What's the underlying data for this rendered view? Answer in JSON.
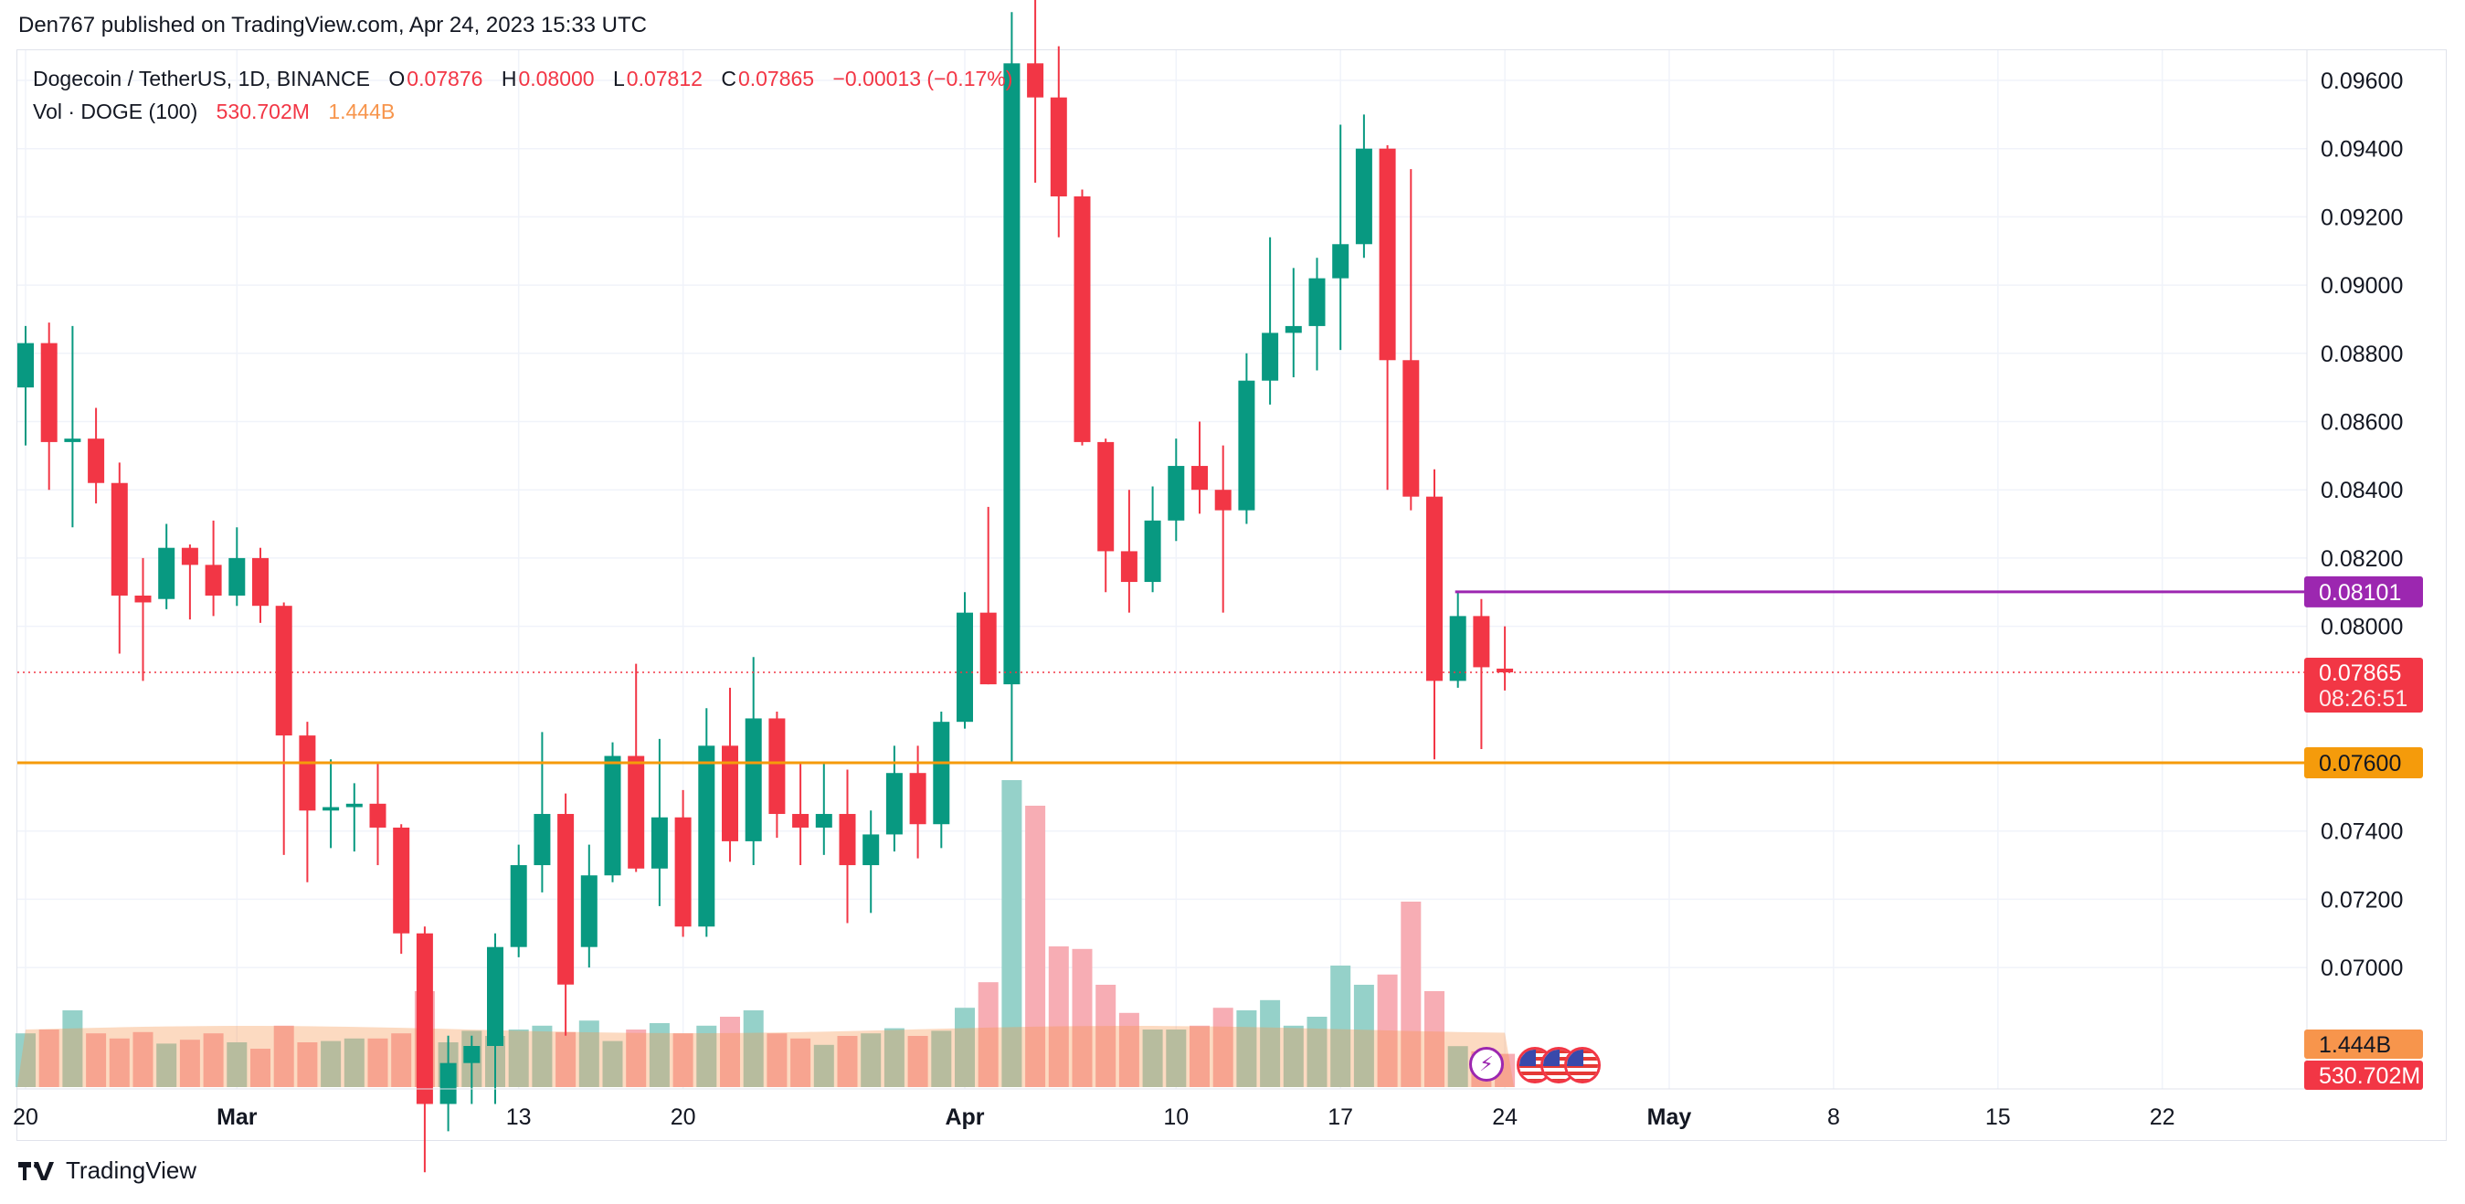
{
  "header": {
    "publisher": "Den767 published on TradingView.com, Apr 24, 2023 15:33 UTC"
  },
  "legend": {
    "symbol": "Dogecoin / TetherUS, 1D, BINANCE",
    "o_label": "O",
    "o_value": "0.07876",
    "h_label": "H",
    "h_value": "0.08000",
    "l_label": "L",
    "l_value": "0.07812",
    "c_label": "C",
    "c_value": "0.07865",
    "change": "−0.00013 (−0.17%)",
    "vol_label": "Vol · DOGE (100)",
    "vol_value": "530.702M",
    "vol_ma": "1.444B"
  },
  "footer": {
    "brand": "TradingView"
  },
  "colors": {
    "up": "#089981",
    "down": "#f23645",
    "level_orange": "#f59b0b",
    "level_purple": "#9c27b0",
    "vol_up": "#8fcfc6",
    "vol_down": "#f7a9b0",
    "vol_ma": "#f7954c"
  },
  "chart_data": {
    "type": "candlestick",
    "title": "Dogecoin / TetherUS, 1D, BINANCE",
    "y_axis": {
      "ticks": [
        "0.09600",
        "0.09400",
        "0.09200",
        "0.09000",
        "0.08800",
        "0.08600",
        "0.08400",
        "0.08200",
        "0.08000",
        "0.07400",
        "0.07200",
        "0.07000"
      ],
      "range": [
        0.0673,
        0.097
      ]
    },
    "x_axis": {
      "ticks": [
        "20",
        "Mar",
        "13",
        "20",
        "Apr",
        "10",
        "17",
        "24",
        "May",
        "8",
        "15",
        "22"
      ],
      "tick_dates": [
        "2023-02-20",
        "2023-03-01",
        "2023-03-13",
        "2023-03-20",
        "2023-04-01",
        "2023-04-10",
        "2023-04-17",
        "2023-04-24",
        "2023-05-01",
        "2023-05-08",
        "2023-05-15",
        "2023-05-22"
      ]
    },
    "grid": true,
    "price_labels": {
      "purple": "0.08101",
      "last": "0.07865",
      "countdown": "08:26:51",
      "orange": "0.07600",
      "vol_ma": "1.444B",
      "vol": "530.702M"
    },
    "horizontal_levels": [
      {
        "value": 0.076,
        "color": "orange"
      },
      {
        "value": 0.08101,
        "color": "purple",
        "from": "2023-04-21"
      }
    ],
    "last_price": 0.07865,
    "candles": [
      {
        "d": "2023-02-20",
        "o": 0.087,
        "h": 0.0888,
        "l": 0.0853,
        "c": 0.0883
      },
      {
        "d": "2023-02-21",
        "o": 0.0883,
        "h": 0.0889,
        "l": 0.084,
        "c": 0.0854
      },
      {
        "d": "2023-02-22",
        "o": 0.0854,
        "h": 0.0888,
        "l": 0.0829,
        "c": 0.0855
      },
      {
        "d": "2023-02-23",
        "o": 0.0855,
        "h": 0.0864,
        "l": 0.0836,
        "c": 0.0842
      },
      {
        "d": "2023-02-24",
        "o": 0.0842,
        "h": 0.0848,
        "l": 0.0792,
        "c": 0.0809
      },
      {
        "d": "2023-02-25",
        "o": 0.0809,
        "h": 0.082,
        "l": 0.0784,
        "c": 0.0807
      },
      {
        "d": "2023-02-26",
        "o": 0.0808,
        "h": 0.083,
        "l": 0.0805,
        "c": 0.0823
      },
      {
        "d": "2023-02-27",
        "o": 0.0823,
        "h": 0.0824,
        "l": 0.0802,
        "c": 0.0818
      },
      {
        "d": "2023-02-28",
        "o": 0.0818,
        "h": 0.0831,
        "l": 0.0803,
        "c": 0.0809
      },
      {
        "d": "2023-03-01",
        "o": 0.0809,
        "h": 0.0829,
        "l": 0.0806,
        "c": 0.082
      },
      {
        "d": "2023-03-02",
        "o": 0.082,
        "h": 0.0823,
        "l": 0.0801,
        "c": 0.0806
      },
      {
        "d": "2023-03-03",
        "o": 0.0806,
        "h": 0.0807,
        "l": 0.0733,
        "c": 0.0768
      },
      {
        "d": "2023-03-04",
        "o": 0.0768,
        "h": 0.0772,
        "l": 0.0725,
        "c": 0.0746
      },
      {
        "d": "2023-03-05",
        "o": 0.0746,
        "h": 0.0761,
        "l": 0.0735,
        "c": 0.0747
      },
      {
        "d": "2023-03-06",
        "o": 0.0747,
        "h": 0.0754,
        "l": 0.0734,
        "c": 0.0748
      },
      {
        "d": "2023-03-07",
        "o": 0.0748,
        "h": 0.076,
        "l": 0.073,
        "c": 0.0741
      },
      {
        "d": "2023-03-08",
        "o": 0.0741,
        "h": 0.0742,
        "l": 0.0704,
        "c": 0.071
      },
      {
        "d": "2023-03-09",
        "o": 0.071,
        "h": 0.0712,
        "l": 0.064,
        "c": 0.066
      },
      {
        "d": "2023-03-10",
        "o": 0.066,
        "h": 0.068,
        "l": 0.0652,
        "c": 0.0672
      },
      {
        "d": "2023-03-11",
        "o": 0.0672,
        "h": 0.068,
        "l": 0.066,
        "c": 0.0677
      },
      {
        "d": "2023-03-12",
        "o": 0.0677,
        "h": 0.071,
        "l": 0.066,
        "c": 0.0706
      },
      {
        "d": "2023-03-13",
        "o": 0.0706,
        "h": 0.0736,
        "l": 0.0703,
        "c": 0.073
      },
      {
        "d": "2023-03-14",
        "o": 0.073,
        "h": 0.0769,
        "l": 0.0722,
        "c": 0.0745
      },
      {
        "d": "2023-03-15",
        "o": 0.0745,
        "h": 0.0751,
        "l": 0.068,
        "c": 0.0695
      },
      {
        "d": "2023-03-16",
        "o": 0.0706,
        "h": 0.0736,
        "l": 0.07,
        "c": 0.0727
      },
      {
        "d": "2023-03-17",
        "o": 0.0727,
        "h": 0.0766,
        "l": 0.0725,
        "c": 0.0762
      },
      {
        "d": "2023-03-18",
        "o": 0.0762,
        "h": 0.0789,
        "l": 0.0728,
        "c": 0.0729
      },
      {
        "d": "2023-03-19",
        "o": 0.0729,
        "h": 0.0767,
        "l": 0.0718,
        "c": 0.0744
      },
      {
        "d": "2023-03-20",
        "o": 0.0744,
        "h": 0.0752,
        "l": 0.0709,
        "c": 0.0712
      },
      {
        "d": "2023-03-21",
        "o": 0.0712,
        "h": 0.0776,
        "l": 0.0709,
        "c": 0.0765
      },
      {
        "d": "2023-03-22",
        "o": 0.0765,
        "h": 0.0782,
        "l": 0.0731,
        "c": 0.0737
      },
      {
        "d": "2023-03-23",
        "o": 0.0737,
        "h": 0.0791,
        "l": 0.073,
        "c": 0.0773
      },
      {
        "d": "2023-03-24",
        "o": 0.0773,
        "h": 0.0775,
        "l": 0.0738,
        "c": 0.0745
      },
      {
        "d": "2023-03-25",
        "o": 0.0745,
        "h": 0.076,
        "l": 0.073,
        "c": 0.0741
      },
      {
        "d": "2023-03-26",
        "o": 0.0741,
        "h": 0.076,
        "l": 0.0733,
        "c": 0.0745
      },
      {
        "d": "2023-03-27",
        "o": 0.0745,
        "h": 0.0758,
        "l": 0.0713,
        "c": 0.073
      },
      {
        "d": "2023-03-28",
        "o": 0.073,
        "h": 0.0746,
        "l": 0.0716,
        "c": 0.0739
      },
      {
        "d": "2023-03-29",
        "o": 0.0739,
        "h": 0.0765,
        "l": 0.0734,
        "c": 0.0757
      },
      {
        "d": "2023-03-30",
        "o": 0.0757,
        "h": 0.0765,
        "l": 0.0732,
        "c": 0.0742
      },
      {
        "d": "2023-03-31",
        "o": 0.0742,
        "h": 0.0775,
        "l": 0.0735,
        "c": 0.0772
      },
      {
        "d": "2023-04-01",
        "o": 0.0772,
        "h": 0.081,
        "l": 0.077,
        "c": 0.0804
      },
      {
        "d": "2023-04-02",
        "o": 0.0804,
        "h": 0.0835,
        "l": 0.0783,
        "c": 0.0783
      },
      {
        "d": "2023-04-03",
        "o": 0.0783,
        "h": 0.098,
        "l": 0.076,
        "c": 0.0965
      },
      {
        "d": "2023-04-04",
        "o": 0.0965,
        "h": 0.099,
        "l": 0.093,
        "c": 0.0955
      },
      {
        "d": "2023-04-05",
        "o": 0.0955,
        "h": 0.097,
        "l": 0.0914,
        "c": 0.0926
      },
      {
        "d": "2023-04-06",
        "o": 0.0926,
        "h": 0.0928,
        "l": 0.0853,
        "c": 0.0854
      },
      {
        "d": "2023-04-07",
        "o": 0.0854,
        "h": 0.0855,
        "l": 0.081,
        "c": 0.0822
      },
      {
        "d": "2023-04-08",
        "o": 0.0822,
        "h": 0.084,
        "l": 0.0804,
        "c": 0.0813
      },
      {
        "d": "2023-04-09",
        "o": 0.0813,
        "h": 0.0841,
        "l": 0.081,
        "c": 0.0831
      },
      {
        "d": "2023-04-10",
        "o": 0.0831,
        "h": 0.0855,
        "l": 0.0825,
        "c": 0.0847
      },
      {
        "d": "2023-04-11",
        "o": 0.0847,
        "h": 0.086,
        "l": 0.0833,
        "c": 0.084
      },
      {
        "d": "2023-04-12",
        "o": 0.084,
        "h": 0.0853,
        "l": 0.0804,
        "c": 0.0834
      },
      {
        "d": "2023-04-13",
        "o": 0.0834,
        "h": 0.088,
        "l": 0.083,
        "c": 0.0872
      },
      {
        "d": "2023-04-14",
        "o": 0.0872,
        "h": 0.0914,
        "l": 0.0865,
        "c": 0.0886
      },
      {
        "d": "2023-04-15",
        "o": 0.0886,
        "h": 0.0905,
        "l": 0.0873,
        "c": 0.0888
      },
      {
        "d": "2023-04-16",
        "o": 0.0888,
        "h": 0.0908,
        "l": 0.0875,
        "c": 0.0902
      },
      {
        "d": "2023-04-17",
        "o": 0.0902,
        "h": 0.0947,
        "l": 0.0881,
        "c": 0.0912
      },
      {
        "d": "2023-04-18",
        "o": 0.0912,
        "h": 0.095,
        "l": 0.0908,
        "c": 0.094
      },
      {
        "d": "2023-04-19",
        "o": 0.094,
        "h": 0.0941,
        "l": 0.084,
        "c": 0.0878
      },
      {
        "d": "2023-04-20",
        "o": 0.0878,
        "h": 0.0934,
        "l": 0.0834,
        "c": 0.0838
      },
      {
        "d": "2023-04-21",
        "o": 0.0838,
        "h": 0.0846,
        "l": 0.0761,
        "c": 0.0784
      },
      {
        "d": "2023-04-22",
        "o": 0.0784,
        "h": 0.081,
        "l": 0.0782,
        "c": 0.0803
      },
      {
        "d": "2023-04-23",
        "o": 0.0803,
        "h": 0.0808,
        "l": 0.0764,
        "c": 0.0788
      },
      {
        "d": "2023-04-24",
        "o": 0.07876,
        "h": 0.08,
        "l": 0.07812,
        "c": 0.07865
      }
    ],
    "volume": [
      0.42,
      0.45,
      0.6,
      0.42,
      0.38,
      0.43,
      0.34,
      0.37,
      0.42,
      0.35,
      0.3,
      0.48,
      0.35,
      0.36,
      0.38,
      0.38,
      0.42,
      0.75,
      0.35,
      0.44,
      0.4,
      0.45,
      0.48,
      0.43,
      0.52,
      0.36,
      0.45,
      0.5,
      0.42,
      0.48,
      0.55,
      0.6,
      0.42,
      0.38,
      0.33,
      0.4,
      0.42,
      0.46,
      0.4,
      0.44,
      0.62,
      0.82,
      2.4,
      2.2,
      1.1,
      1.08,
      0.8,
      0.58,
      0.45,
      0.45,
      0.48,
      0.62,
      0.6,
      0.68,
      0.48,
      0.55,
      0.95,
      0.8,
      0.88,
      1.45,
      0.75,
      0.32,
      0.28,
      0.26
    ]
  }
}
